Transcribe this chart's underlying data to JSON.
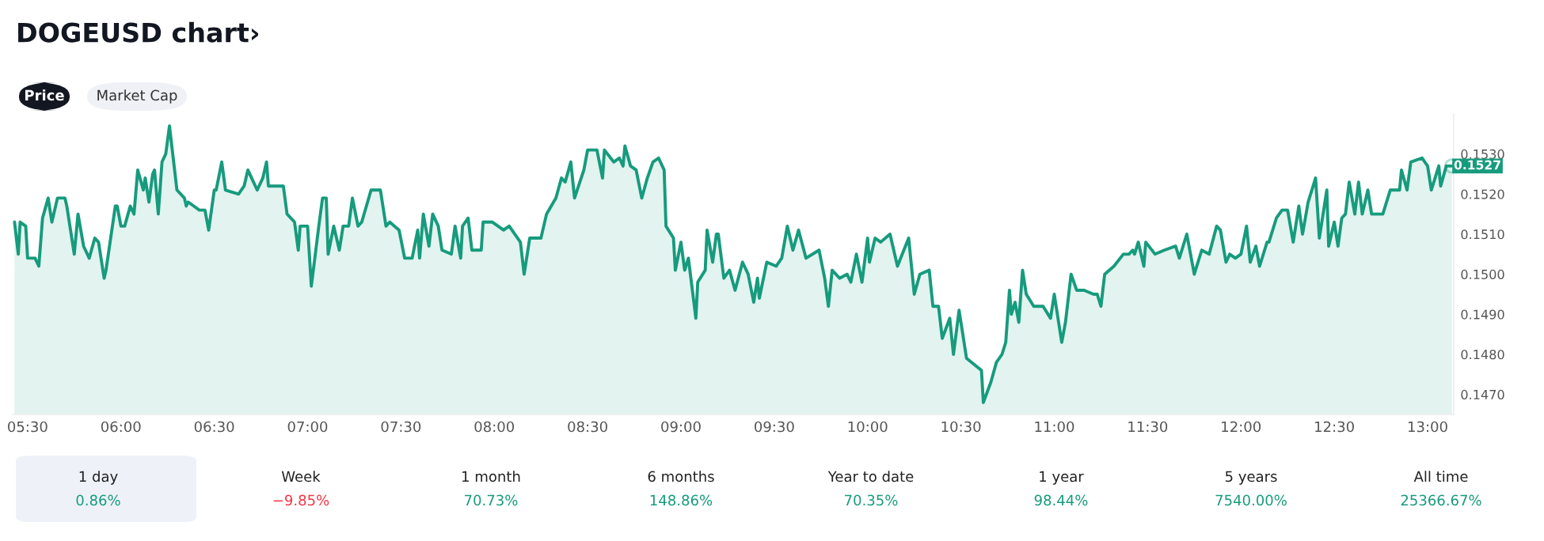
{
  "chart_data": {
    "type": "area",
    "title": "DOGEUSD chart›",
    "annotations": [
      "Price",
      "Market Cap",
      "1 day",
      "0.86%",
      "Week",
      "−9.85%",
      "1 month",
      "70.73%",
      "6 months",
      "148.86%",
      "Year to date",
      "70.35%",
      "1 year",
      "98.44%",
      "5 years",
      "7540.00%",
      "All time",
      "25366.67%",
      {
        "text": "0.1527",
        "x": 13.13,
        "y": 0.1527
      }
    ],
    "series": [
      {
        "color": "#169b7d",
        "x": [
          5.43,
          5.45,
          5.46,
          5.49,
          5.5,
          5.54,
          5.56,
          5.58,
          5.61,
          5.63,
          5.66,
          5.7,
          5.71,
          5.75,
          5.77,
          5.8,
          5.83,
          5.86,
          5.88,
          5.91,
          5.92,
          5.97,
          5.98,
          6.0,
          6.02,
          6.05,
          6.07,
          6.09,
          6.12,
          6.13,
          6.15,
          6.17,
          6.18,
          6.2,
          6.22,
          6.24,
          6.26,
          6.28,
          6.3,
          6.34,
          6.35,
          6.36,
          6.39,
          6.42,
          6.45,
          6.47,
          6.5,
          6.51,
          6.54,
          6.56,
          6.63,
          6.66,
          6.68,
          6.71,
          6.73,
          6.76,
          6.78,
          6.79,
          6.87,
          6.89,
          6.93,
          6.95,
          6.96,
          7.0,
          7.02,
          7.06,
          7.08,
          7.1,
          7.11,
          7.14,
          7.17,
          7.19,
          7.22,
          7.24,
          7.27,
          7.29,
          7.34,
          7.39,
          7.42,
          7.44,
          7.49,
          7.52,
          7.56,
          7.59,
          7.6,
          7.62,
          7.65,
          7.67,
          7.7,
          7.72,
          7.77,
          7.79,
          7.82,
          7.83,
          7.86,
          7.88,
          7.93,
          7.94,
          7.99,
          8.05,
          8.08,
          8.14,
          8.16,
          8.19,
          8.25,
          8.28,
          8.33,
          8.36,
          8.38,
          8.41,
          8.43,
          8.48,
          8.5,
          8.55,
          8.58,
          8.59,
          8.64,
          8.67,
          8.69,
          8.7,
          8.73,
          8.76,
          8.79,
          8.82,
          8.85,
          8.88,
          8.91,
          8.92,
          8.96,
          8.97,
          9.0,
          9.02,
          9.04,
          9.08,
          9.09,
          9.13,
          9.14,
          9.17,
          9.19,
          9.2,
          9.23,
          9.26,
          9.29,
          9.33,
          9.36,
          9.39,
          9.41,
          9.42,
          9.46,
          9.51,
          9.54,
          9.57,
          9.6,
          9.63,
          9.67,
          9.74,
          9.77,
          9.79,
          9.81,
          9.85,
          9.89,
          9.91,
          9.94,
          9.97,
          10.0,
          10.01,
          10.04,
          10.07,
          10.12,
          10.16,
          10.22,
          10.25,
          10.28,
          10.33,
          10.35,
          10.38,
          10.4,
          10.44,
          10.46,
          10.49,
          10.53,
          10.61,
          10.62,
          10.66,
          10.69,
          10.72,
          10.74,
          10.76,
          10.77,
          10.79,
          10.81,
          10.83,
          10.85,
          10.89,
          10.94,
          10.98,
          11.0,
          11.04,
          11.06,
          11.09,
          11.12,
          11.16,
          11.21,
          11.23,
          11.25,
          11.27,
          11.32,
          11.37,
          11.4,
          11.42,
          11.43,
          11.45,
          11.48,
          11.49,
          11.54,
          11.59,
          11.65,
          11.67,
          11.71,
          11.75,
          11.79,
          11.83,
          11.87,
          11.89,
          11.92,
          11.94,
          11.97,
          12.0,
          12.03,
          12.05,
          12.08,
          12.1,
          12.14,
          12.15,
          12.19,
          12.22,
          12.25,
          12.28,
          12.31,
          12.33,
          12.36,
          12.4,
          12.42,
          12.46,
          12.47,
          12.5,
          12.52,
          12.54,
          12.56,
          12.58,
          12.61,
          12.63,
          12.65,
          12.68,
          12.7,
          12.76,
          12.8,
          12.85,
          12.86,
          12.89,
          12.91,
          12.97,
          13.0,
          13.02,
          13.06,
          13.07,
          13.1,
          13.13
        ],
        "values": [
          0.1513,
          0.1505,
          0.1513,
          0.1512,
          0.1504,
          0.1504,
          0.1502,
          0.1514,
          0.1519,
          0.1513,
          0.1519,
          0.1519,
          0.1517,
          0.1505,
          0.1515,
          0.1507,
          0.1504,
          0.1509,
          0.1508,
          0.1499,
          0.1501,
          0.1517,
          0.1517,
          0.1512,
          0.1512,
          0.1517,
          0.1515,
          0.1526,
          0.1521,
          0.1524,
          0.1518,
          0.1525,
          0.1526,
          0.1515,
          0.1528,
          0.153,
          0.1537,
          0.1529,
          0.1521,
          0.1519,
          0.1517,
          0.1518,
          0.1517,
          0.1516,
          0.1516,
          0.1511,
          0.1521,
          0.1521,
          0.1528,
          0.1521,
          0.152,
          0.1522,
          0.1526,
          0.1523,
          0.1521,
          0.1524,
          0.1528,
          0.1522,
          0.1522,
          0.1515,
          0.1513,
          0.1506,
          0.1512,
          0.1512,
          0.1497,
          0.1512,
          0.1519,
          0.1519,
          0.1505,
          0.1512,
          0.1506,
          0.1512,
          0.1512,
          0.1519,
          0.1512,
          0.1513,
          0.1521,
          0.1521,
          0.1512,
          0.1513,
          0.1511,
          0.1504,
          0.1504,
          0.1511,
          0.1504,
          0.1515,
          0.1507,
          0.1515,
          0.1512,
          0.1506,
          0.1505,
          0.1512,
          0.1504,
          0.1512,
          0.1514,
          0.1506,
          0.1506,
          0.1513,
          0.1513,
          0.1511,
          0.1512,
          0.1508,
          0.15,
          0.1509,
          0.1509,
          0.1515,
          0.1519,
          0.1524,
          0.1523,
          0.1528,
          0.1519,
          0.1526,
          0.1531,
          0.1531,
          0.1524,
          0.1531,
          0.1528,
          0.1529,
          0.1527,
          0.1532,
          0.1527,
          0.1526,
          0.1519,
          0.1524,
          0.1528,
          0.1529,
          0.1526,
          0.1512,
          0.1509,
          0.1501,
          0.1508,
          0.1501,
          0.1504,
          0.1489,
          0.1498,
          0.1501,
          0.1511,
          0.1503,
          0.151,
          0.151,
          0.1499,
          0.1501,
          0.1496,
          0.1503,
          0.15,
          0.1493,
          0.1499,
          0.1494,
          0.1503,
          0.1502,
          0.1504,
          0.1512,
          0.1506,
          0.1511,
          0.1504,
          0.1506,
          0.1499,
          0.1492,
          0.1501,
          0.1499,
          0.15,
          0.1498,
          0.1505,
          0.1498,
          0.1509,
          0.1503,
          0.1509,
          0.1508,
          0.151,
          0.1502,
          0.1509,
          0.1495,
          0.15,
          0.1501,
          0.1492,
          0.1492,
          0.1484,
          0.1489,
          0.148,
          0.1491,
          0.1479,
          0.1476,
          0.1468,
          0.1473,
          0.1478,
          0.148,
          0.1483,
          0.1496,
          0.149,
          0.1493,
          0.1488,
          0.1501,
          0.1495,
          0.1492,
          0.1492,
          0.1489,
          0.1495,
          0.1483,
          0.1488,
          0.15,
          0.1496,
          0.1496,
          0.1495,
          0.1495,
          0.1492,
          0.15,
          0.1502,
          0.1505,
          0.1505,
          0.1506,
          0.1505,
          0.1508,
          0.1502,
          0.1508,
          0.1505,
          0.1506,
          0.1507,
          0.1504,
          0.151,
          0.15,
          0.1506,
          0.1505,
          0.1512,
          0.1511,
          0.1503,
          0.1505,
          0.1504,
          0.1505,
          0.1512,
          0.1503,
          0.1507,
          0.1502,
          0.1508,
          0.1508,
          0.1514,
          0.1516,
          0.1516,
          0.1508,
          0.1517,
          0.151,
          0.1518,
          0.1524,
          0.1509,
          0.1521,
          0.1507,
          0.1513,
          0.1507,
          0.1514,
          0.1515,
          0.1523,
          0.1515,
          0.1523,
          0.1515,
          0.1521,
          0.1515,
          0.1515,
          0.1521,
          0.1521,
          0.1526,
          0.1521,
          0.1528,
          0.1529,
          0.1527,
          0.1521,
          0.1527,
          0.1522,
          0.1527,
          0.1527
        ]
      }
    ],
    "xlim": [
      5.42,
      13.14
    ],
    "xticks": [
      {
        "value": 5.5,
        "label": "05:30"
      },
      {
        "value": 6.0,
        "label": "06:00"
      },
      {
        "value": 6.5,
        "label": "06:30"
      },
      {
        "value": 7.0,
        "label": "07:00"
      },
      {
        "value": 7.5,
        "label": "07:30"
      },
      {
        "value": 8.0,
        "label": "08:00"
      },
      {
        "value": 8.5,
        "label": "08:30"
      },
      {
        "value": 9.0,
        "label": "09:00"
      },
      {
        "value": 9.5,
        "label": "09:30"
      },
      {
        "value": 10.0,
        "label": "10:00"
      },
      {
        "value": 10.5,
        "label": "10:30"
      },
      {
        "value": 11.0,
        "label": "11:00"
      },
      {
        "value": 11.5,
        "label": "11:30"
      },
      {
        "value": 12.0,
        "label": "12:00"
      },
      {
        "value": 12.5,
        "label": "12:30"
      },
      {
        "value": 13.0,
        "label": "13:00"
      }
    ],
    "ylim": [
      0.1465,
      0.154
    ],
    "yticks": [
      {
        "value": 0.147,
        "label": "0.1470"
      },
      {
        "value": 0.148,
        "label": "0.1480"
      },
      {
        "value": 0.149,
        "label": "0.1490"
      },
      {
        "value": 0.15,
        "label": "0.1500"
      },
      {
        "value": 0.151,
        "label": "0.1510"
      },
      {
        "value": 0.152,
        "label": "0.1520"
      },
      {
        "value": 0.153,
        "label": "0.1530"
      }
    ]
  }
}
